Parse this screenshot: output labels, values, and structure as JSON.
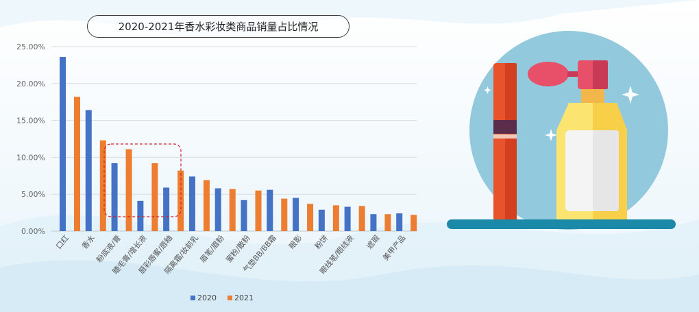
{
  "chart_data": {
    "type": "bar",
    "title": "2020-2021年香水彩妆类商品销量占比情况",
    "categories": [
      "口红",
      "香水",
      "粉底液/膏",
      "睫毛膏/增长液",
      "唇彩唇蜜/唇釉",
      "隔离霜/妆前乳",
      "眉笔/眉粉",
      "蜜粉/散粉",
      "气垫BB/BB霜",
      "眼影",
      "粉饼",
      "眼线笔/眼线液",
      "遮瑕",
      "美甲产品"
    ],
    "series": [
      {
        "name": "2020",
        "color": "#4472c4",
        "values": [
          23.6,
          16.4,
          9.2,
          4.1,
          5.9,
          7.4,
          5.8,
          4.2,
          5.6,
          4.5,
          2.9,
          3.3,
          2.3,
          2.4
        ]
      },
      {
        "name": "2021",
        "color": "#ed7d31",
        "values": [
          18.2,
          12.3,
          11.1,
          9.2,
          8.2,
          6.9,
          5.7,
          5.5,
          4.4,
          3.7,
          3.5,
          3.4,
          2.3,
          2.2
        ]
      }
    ],
    "ylim": [
      0,
      25
    ],
    "yticks": [
      "0.00%",
      "5.00%",
      "10.00%",
      "15.00%",
      "20.00%",
      "25.00%"
    ],
    "grid": true,
    "legend_position": "bottom"
  }
}
